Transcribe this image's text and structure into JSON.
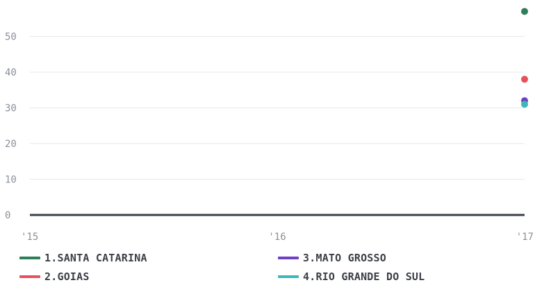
{
  "chart_data": {
    "type": "scatter",
    "title": "",
    "xlabel": "",
    "ylabel": "",
    "x_ticks": [
      "'15",
      "'16",
      "'17"
    ],
    "y_ticks": [
      0,
      10,
      20,
      30,
      40,
      50
    ],
    "ylim": [
      0,
      60
    ],
    "grid": true,
    "legend_position": "bottom",
    "series": [
      {
        "name": "1.SANTA CATARINA",
        "color": "#2e7d5b",
        "points": [
          {
            "x": "'17",
            "y": 57
          }
        ]
      },
      {
        "name": "2.GOIAS",
        "color": "#e8505b",
        "points": [
          {
            "x": "'17",
            "y": 38
          }
        ]
      },
      {
        "name": "3.MATO GROSSO",
        "color": "#6f3fc4",
        "points": [
          {
            "x": "'17",
            "y": 32
          }
        ]
      },
      {
        "name": "4.RIO GRANDE DO SUL",
        "color": "#3fb7b7",
        "points": [
          {
            "x": "'17",
            "y": 31
          }
        ]
      }
    ]
  }
}
